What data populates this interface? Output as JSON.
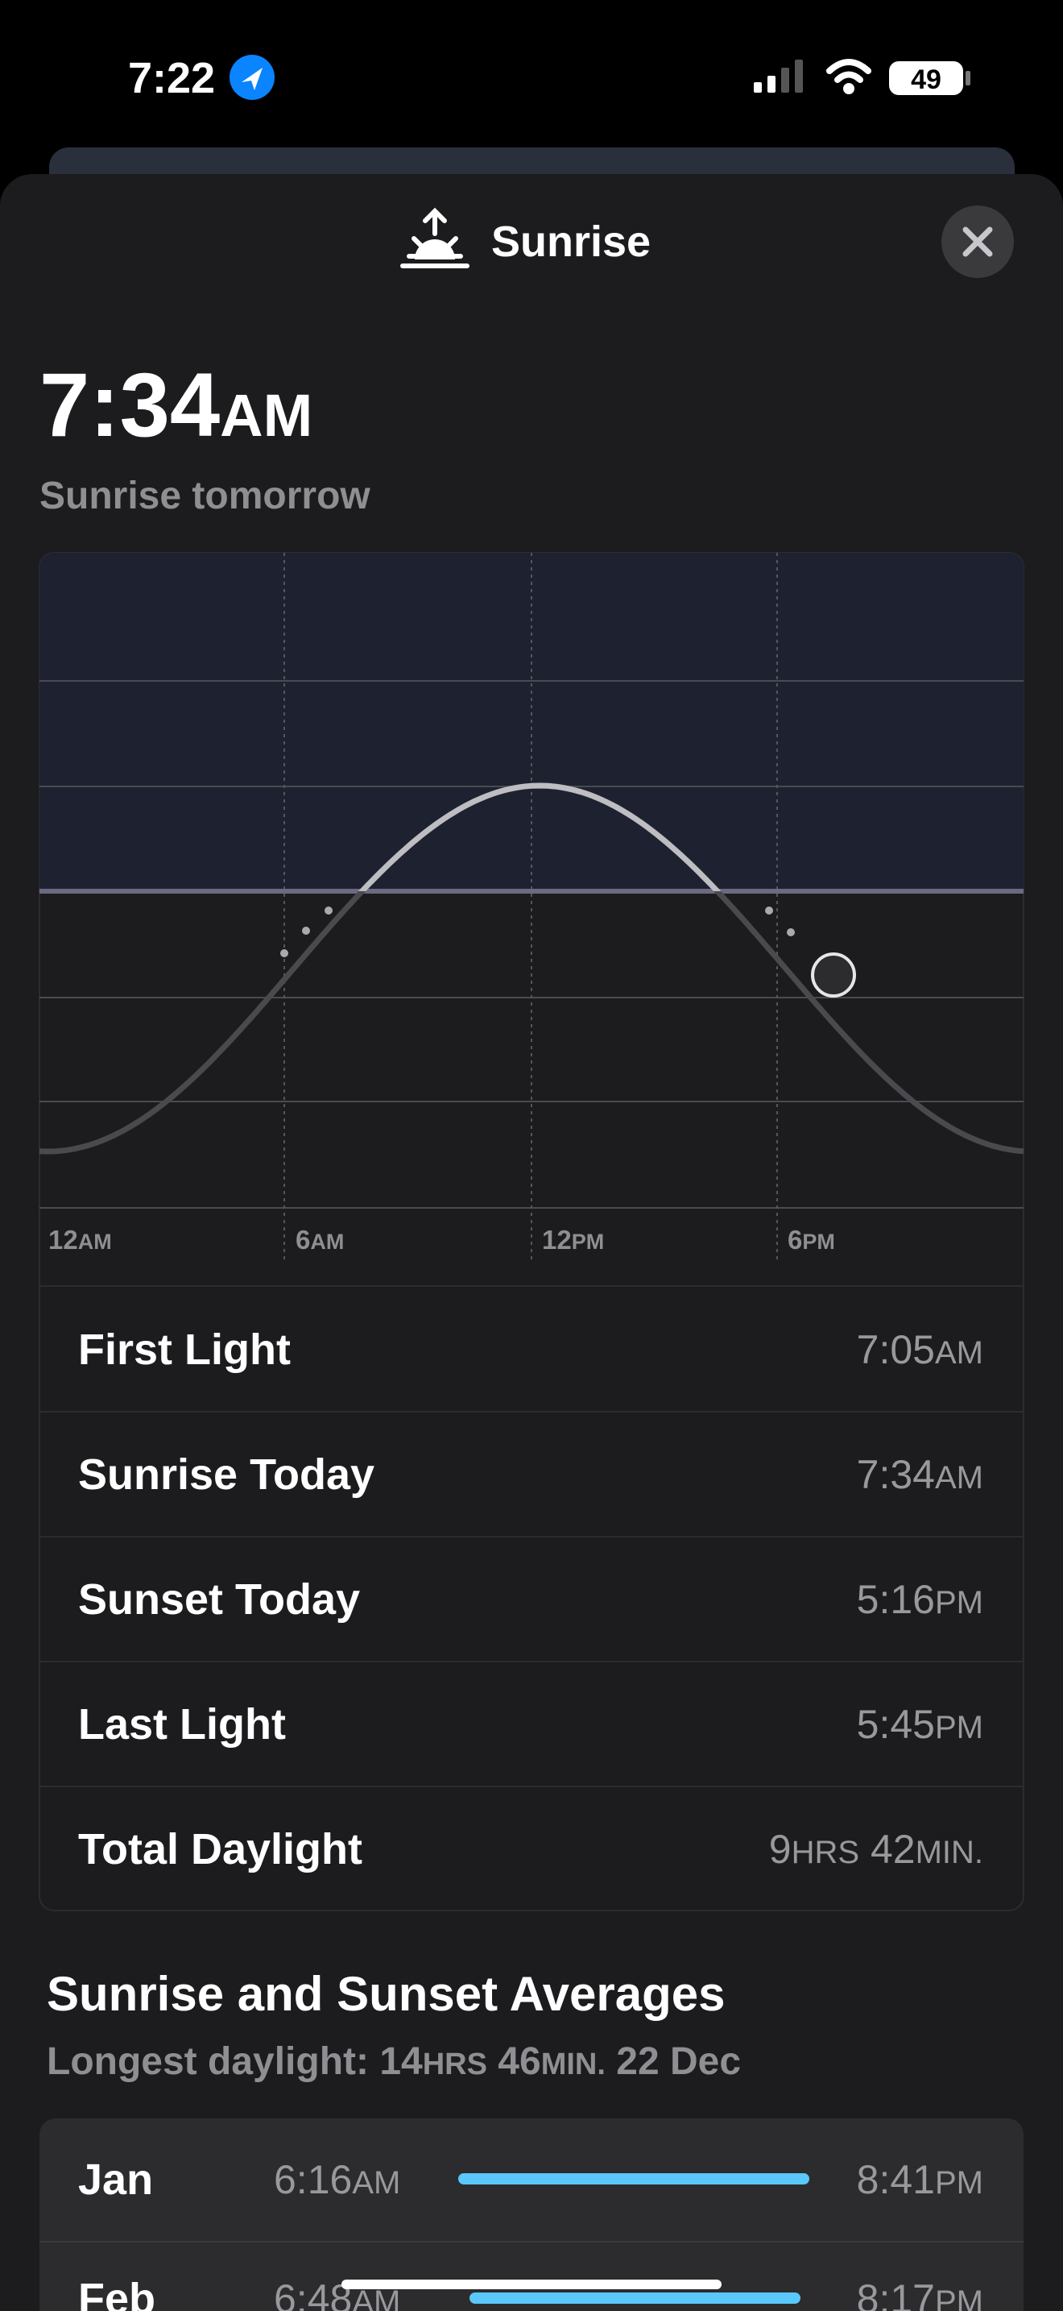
{
  "status_bar": {
    "time": "7:22",
    "battery": "49"
  },
  "header": {
    "title": "Sunrise"
  },
  "summary": {
    "time": [
      "7:34",
      "AM"
    ],
    "caption": "Sunrise tomorrow"
  },
  "chart": {
    "x_labels": [
      [
        "12",
        "AM"
      ],
      [
        "6",
        "AM"
      ],
      [
        "12",
        "PM"
      ],
      [
        "6",
        "PM"
      ]
    ]
  },
  "details": [
    {
      "label": "First Light",
      "value": [
        "7:05",
        "AM"
      ]
    },
    {
      "label": "Sunrise Today",
      "value": [
        "7:34",
        "AM"
      ]
    },
    {
      "label": "Sunset Today",
      "value": [
        "5:16",
        "PM"
      ]
    },
    {
      "label": "Last Light",
      "value": [
        "5:45",
        "PM"
      ]
    },
    {
      "label": "Total Daylight",
      "value": [
        "9",
        "HRS",
        " 42",
        "MIN."
      ]
    }
  ],
  "averages": {
    "title": "Sunrise and Sunset Averages",
    "subtitle": [
      "Longest daylight: 14",
      "HRS",
      " 46",
      "MIN.",
      " 22 Dec"
    ],
    "months": [
      {
        "month": "Jan",
        "sunrise": [
          "6:16",
          "AM"
        ],
        "sunset": [
          "8:41",
          "PM"
        ]
      },
      {
        "month": "Feb",
        "sunrise": [
          "6:48",
          "AM"
        ],
        "sunset": [
          "8:17",
          "PM"
        ]
      }
    ]
  }
}
